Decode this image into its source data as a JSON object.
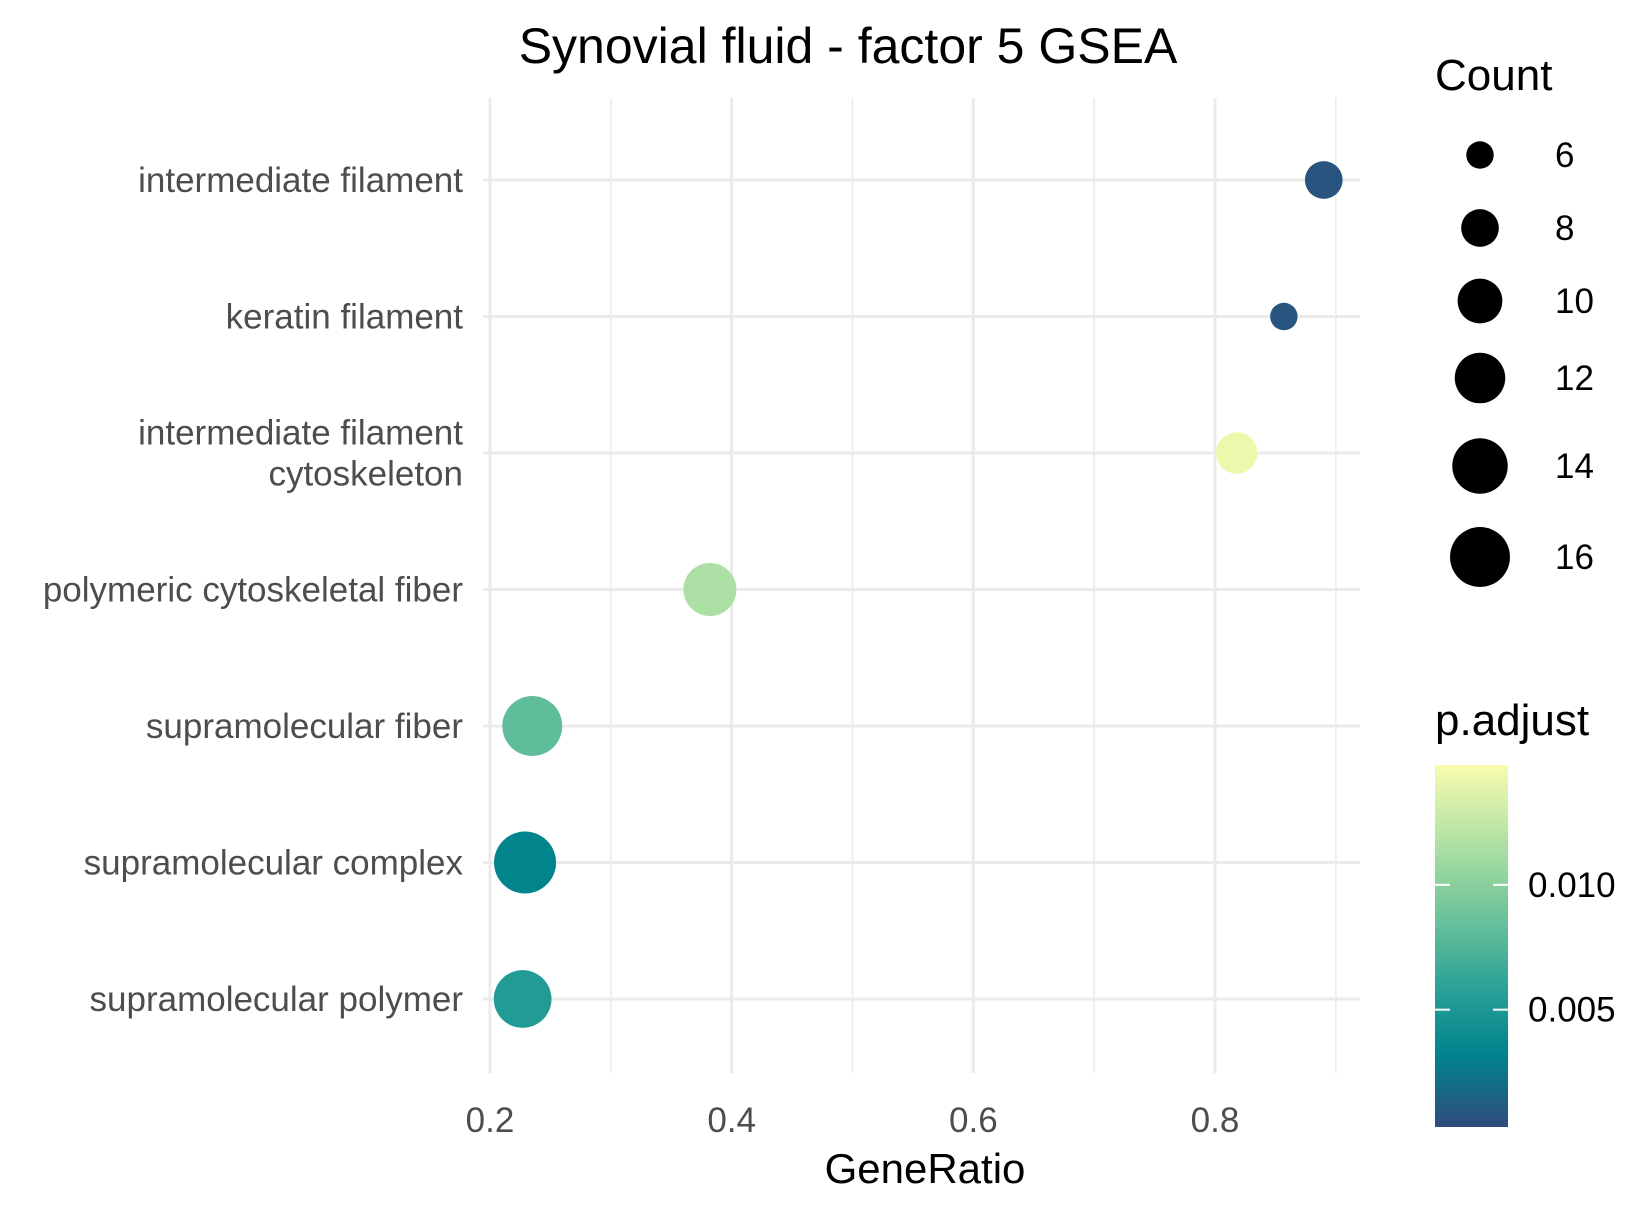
{
  "chart_data": {
    "type": "scatter",
    "title": "Synovial fluid - factor 5 GSEA",
    "xlabel": "GeneRatio",
    "ylabel": "",
    "xlim": [
      0.17,
      0.92
    ],
    "xticks": [
      0.2,
      0.4,
      0.6,
      0.8
    ],
    "xtick_labels": [
      "0.2",
      "0.4",
      "0.6",
      "0.8"
    ],
    "grid": true,
    "categories": [
      "intermediate filament",
      "keratin filament",
      "intermediate filament cytoskeleton",
      "polymeric cytoskeletal fiber",
      "supramolecular fiber",
      "supramolecular complex",
      "supramolecular polymer"
    ],
    "category_labels": [
      [
        "intermediate filament"
      ],
      [
        "keratin filament"
      ],
      [
        "intermediate filament",
        "cytoskeleton"
      ],
      [
        "polymeric cytoskeletal fiber"
      ],
      [
        "supramolecular fiber"
      ],
      [
        "supramolecular complex"
      ],
      [
        "supramolecular polymer"
      ]
    ],
    "points": [
      {
        "term": "intermediate filament",
        "gene_ratio": 0.89,
        "count": 8,
        "p_adjust": 0.0008
      },
      {
        "term": "keratin filament",
        "gene_ratio": 0.857,
        "count": 6,
        "p_adjust": 0.0008
      },
      {
        "term": "intermediate filament cytoskeleton",
        "gene_ratio": 0.818,
        "count": 9,
        "p_adjust": 0.0143
      },
      {
        "term": "polymeric cytoskeletal fiber",
        "gene_ratio": 0.382,
        "count": 13,
        "p_adjust": 0.0115
      },
      {
        "term": "supramolecular fiber",
        "gene_ratio": 0.235,
        "count": 16,
        "p_adjust": 0.0082
      },
      {
        "term": "supramolecular complex",
        "gene_ratio": 0.229,
        "count": 17,
        "p_adjust": 0.0033
      },
      {
        "term": "supramolecular polymer",
        "gene_ratio": 0.227,
        "count": 15,
        "p_adjust": 0.0053
      }
    ],
    "size_legend": {
      "title": "Count",
      "values": [
        6,
        8,
        10,
        12,
        14,
        16
      ],
      "labels": [
        "6",
        "8",
        "10",
        "12",
        "14",
        "16"
      ]
    },
    "color_legend": {
      "title": "p.adjust",
      "range": [
        0.0003,
        0.0148
      ],
      "ticks": [
        0.005,
        0.01
      ],
      "tick_labels": [
        "0.005",
        "0.010"
      ],
      "colormap": [
        "#2f4b7c",
        "#00838d",
        "#30a498",
        "#72c69a",
        "#b4e3a4",
        "#f8fcae"
      ]
    },
    "colors": {
      "grid": "#ebebeb",
      "text_dark": "#000000",
      "text_axis": "#4d4d4d"
    },
    "legend_position": "right"
  }
}
